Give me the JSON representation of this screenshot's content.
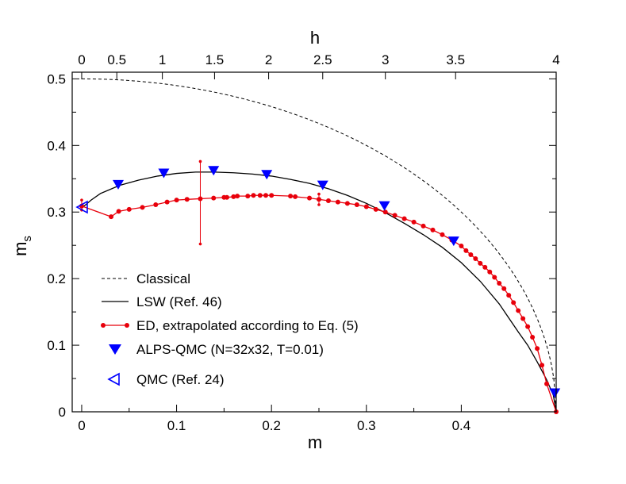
{
  "chart_data": {
    "type": "line",
    "title": "",
    "xlabel": "m",
    "ylabel_main": "m",
    "ylabel_sub": "s",
    "top_axis_label": "h",
    "xlim": [
      -0.01,
      0.5
    ],
    "ylim": [
      0,
      0.51
    ],
    "x_ticks": [
      {
        "value": 0,
        "label": "0"
      },
      {
        "value": 0.1,
        "label": "0.1"
      },
      {
        "value": 0.2,
        "label": "0.2"
      },
      {
        "value": 0.3,
        "label": "0.3"
      },
      {
        "value": 0.4,
        "label": "0.4"
      }
    ],
    "y_ticks": [
      {
        "value": 0,
        "label": "0"
      },
      {
        "value": 0.1,
        "label": "0.1"
      },
      {
        "value": 0.2,
        "label": "0.2"
      },
      {
        "value": 0.3,
        "label": "0.3"
      },
      {
        "value": 0.4,
        "label": "0.4"
      },
      {
        "value": 0.5,
        "label": "0.5"
      }
    ],
    "top_ticks": [
      {
        "m": 0,
        "label": "0"
      },
      {
        "m": 0.037,
        "label": "0.5"
      },
      {
        "m": 0.085,
        "label": "1"
      },
      {
        "m": 0.14,
        "label": "1.5"
      },
      {
        "m": 0.197,
        "label": "2"
      },
      {
        "m": 0.254,
        "label": "2.5"
      },
      {
        "m": 0.32,
        "label": "3"
      },
      {
        "m": 0.394,
        "label": "3.5"
      },
      {
        "m": 0.5,
        "label": "4"
      }
    ],
    "series": [
      {
        "name": "Classical",
        "style": "dashed",
        "color": "#000000",
        "formula": "ms = sqrt(0.25 - m^2)"
      },
      {
        "name": "LSW (Ref. 46)",
        "style": "solid",
        "color": "#000000",
        "points": [
          [
            0,
            0.306
          ],
          [
            0.01,
            0.318
          ],
          [
            0.02,
            0.328
          ],
          [
            0.04,
            0.34
          ],
          [
            0.06,
            0.348
          ],
          [
            0.08,
            0.354
          ],
          [
            0.1,
            0.358
          ],
          [
            0.12,
            0.36
          ],
          [
            0.14,
            0.36
          ],
          [
            0.16,
            0.359
          ],
          [
            0.18,
            0.357
          ],
          [
            0.2,
            0.354
          ],
          [
            0.22,
            0.349
          ],
          [
            0.24,
            0.343
          ],
          [
            0.26,
            0.335
          ],
          [
            0.28,
            0.325
          ],
          [
            0.3,
            0.313
          ],
          [
            0.32,
            0.299
          ],
          [
            0.34,
            0.283
          ],
          [
            0.36,
            0.266
          ],
          [
            0.38,
            0.247
          ],
          [
            0.4,
            0.224
          ],
          [
            0.42,
            0.196
          ],
          [
            0.44,
            0.162
          ],
          [
            0.46,
            0.12
          ],
          [
            0.47,
            0.1
          ],
          [
            0.48,
            0.075
          ],
          [
            0.49,
            0.048
          ],
          [
            0.497,
            0.025
          ],
          [
            0.5,
            0
          ]
        ]
      },
      {
        "name": "ED, extrapolated according to Eq. (5)",
        "style": "line+circles",
        "color": "#e8000b",
        "points": [
          [
            0,
            0.309
          ],
          [
            0.031,
            0.293
          ],
          [
            0.039,
            0.301
          ],
          [
            0.05,
            0.304
          ],
          [
            0.064,
            0.307
          ],
          [
            0.078,
            0.311
          ],
          [
            0.09,
            0.315
          ],
          [
            0.1,
            0.318
          ],
          [
            0.111,
            0.319
          ],
          [
            0.125,
            0.32
          ],
          [
            0.139,
            0.321
          ],
          [
            0.15,
            0.322
          ],
          [
            0.153,
            0.322
          ],
          [
            0.16,
            0.323
          ],
          [
            0.164,
            0.324
          ],
          [
            0.175,
            0.324
          ],
          [
            0.181,
            0.325
          ],
          [
            0.188,
            0.325
          ],
          [
            0.194,
            0.325
          ],
          [
            0.2,
            0.325
          ],
          [
            0.22,
            0.324
          ],
          [
            0.225,
            0.323
          ],
          [
            0.24,
            0.321
          ],
          [
            0.25,
            0.319
          ],
          [
            0.26,
            0.317
          ],
          [
            0.27,
            0.315
          ],
          [
            0.28,
            0.313
          ],
          [
            0.29,
            0.311
          ],
          [
            0.3,
            0.308
          ],
          [
            0.31,
            0.304
          ],
          [
            0.32,
            0.3
          ],
          [
            0.33,
            0.295
          ],
          [
            0.34,
            0.29
          ],
          [
            0.35,
            0.285
          ],
          [
            0.36,
            0.279
          ],
          [
            0.37,
            0.273
          ],
          [
            0.38,
            0.266
          ],
          [
            0.39,
            0.258
          ],
          [
            0.4,
            0.249
          ],
          [
            0.405,
            0.242
          ],
          [
            0.41,
            0.236
          ],
          [
            0.415,
            0.23
          ],
          [
            0.42,
            0.223
          ],
          [
            0.425,
            0.217
          ],
          [
            0.43,
            0.21
          ],
          [
            0.435,
            0.202
          ],
          [
            0.44,
            0.193
          ],
          [
            0.445,
            0.185
          ],
          [
            0.45,
            0.175
          ],
          [
            0.455,
            0.164
          ],
          [
            0.46,
            0.152
          ],
          [
            0.465,
            0.14
          ],
          [
            0.47,
            0.128
          ],
          [
            0.475,
            0.112
          ],
          [
            0.48,
            0.095
          ],
          [
            0.485,
            0.07
          ],
          [
            0.49,
            0.042
          ],
          [
            0.5,
            0
          ]
        ],
        "error_bars": [
          {
            "x": 0,
            "y": 0.309,
            "low": 0.303,
            "high": 0.318
          },
          {
            "x": 0.125,
            "y": 0.32,
            "low": 0.252,
            "high": 0.376
          },
          {
            "x": 0.25,
            "y": 0.319,
            "low": 0.311,
            "high": 0.327
          }
        ]
      },
      {
        "name": "ALPS-QMC (N=32x32, T=0.01)",
        "style": "markers",
        "marker": "triangle-down",
        "color": "#0000ff",
        "points": [
          [
            0.0385,
            0.341
          ],
          [
            0.0865,
            0.358
          ],
          [
            0.139,
            0.362
          ],
          [
            0.195,
            0.356
          ],
          [
            0.254,
            0.34
          ],
          [
            0.319,
            0.309
          ],
          [
            0.392,
            0.256
          ],
          [
            0.4985,
            0.028
          ]
        ]
      },
      {
        "name": "QMC (Ref. 24)",
        "style": "markers",
        "marker": "triangle-left-open",
        "color": "#0000ff",
        "points": [
          [
            0,
            0.3074
          ]
        ]
      }
    ]
  }
}
